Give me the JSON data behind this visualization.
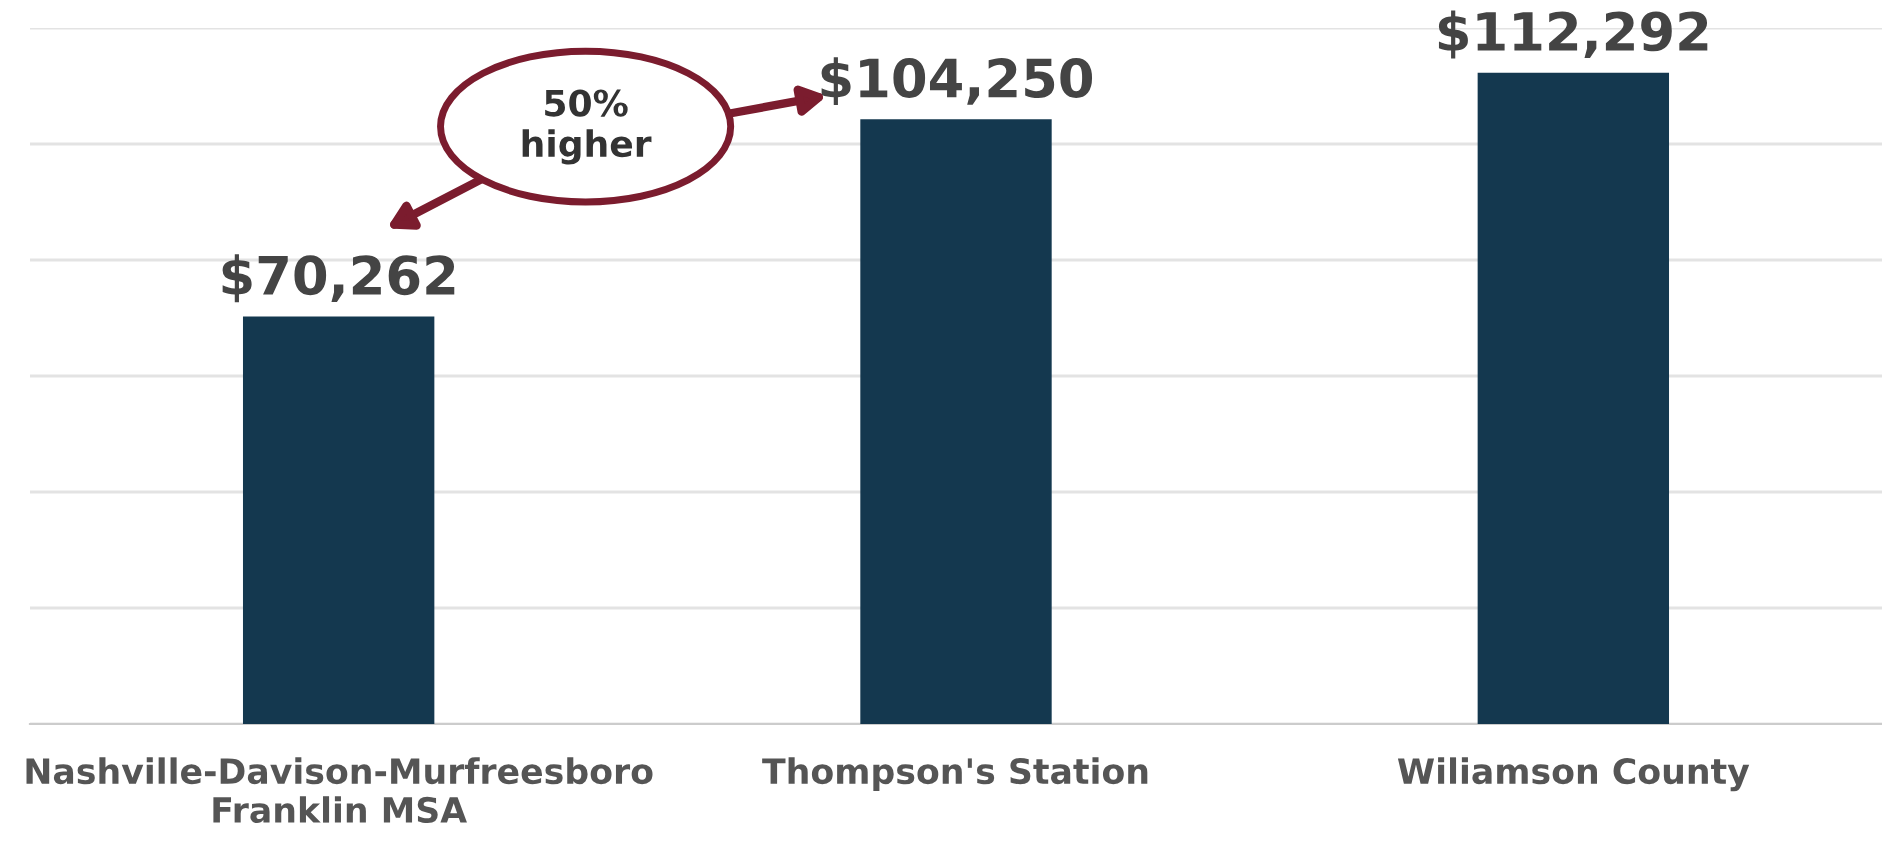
{
  "chart_data": {
    "type": "bar",
    "categories": [
      "Nashville-Davison-Murfreesboro\nFranklin MSA",
      "Thompson's Station",
      "Wiliamson County"
    ],
    "values": [
      70262,
      104250,
      112292
    ],
    "color": "#14384f",
    "value_labels": [
      "$70,262",
      "$104,250",
      "$112,292"
    ],
    "yticks": [
      {
        "value": 0,
        "label": null
      },
      {
        "value": 20000,
        "label": null
      },
      {
        "value": 40000,
        "label": null
      },
      {
        "value": 60000,
        "label": null
      },
      {
        "value": 80000,
        "label": null
      },
      {
        "value": 100000,
        "label": null
      },
      {
        "value": 120000,
        "label": null
      }
    ],
    "grid": "y",
    "tick_labels": "x",
    "annotations": [
      "50%\nhigher"
    ]
  }
}
